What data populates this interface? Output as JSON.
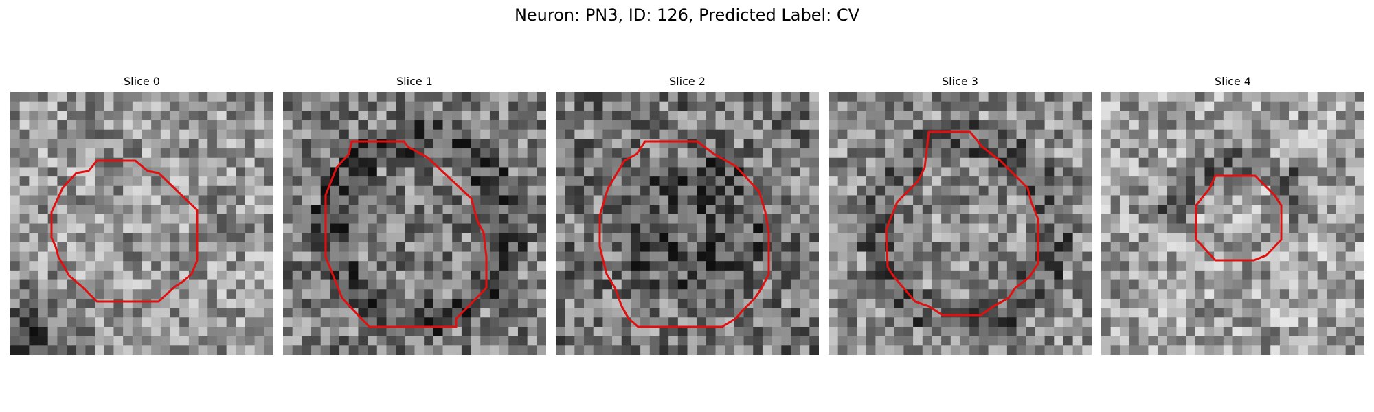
{
  "figure": {
    "title": "Neuron: PN3, ID: 126, Predicted Label: CV"
  },
  "contour_color": "#e01010",
  "slices": [
    {
      "title": "Slice 0",
      "contour_shape": "large irregular polygon",
      "tone": "light grey noise, dark lower-left corner"
    },
    {
      "title": "Slice 1",
      "contour_shape": "large irregular polygon",
      "tone": "dark ring structure"
    },
    {
      "title": "Slice 2",
      "contour_shape": "large irregular polygon",
      "tone": "dark center"
    },
    {
      "title": "Slice 3",
      "contour_shape": "medium irregular polygon",
      "tone": "mid grey with dark ring"
    },
    {
      "title": "Slice 4",
      "contour_shape": "small octagon",
      "tone": "light grey with dark blobs"
    }
  ]
}
